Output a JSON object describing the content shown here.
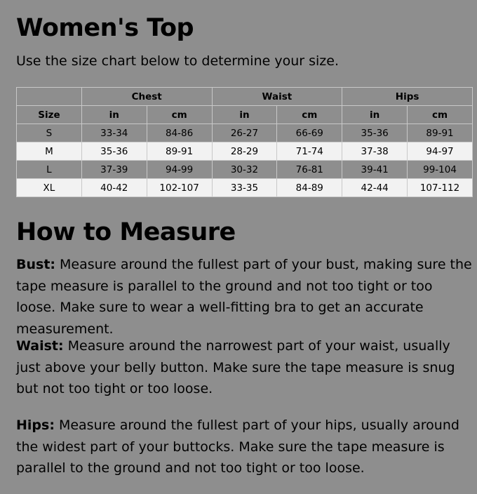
{
  "title": "Women's Top",
  "intro": "Use the size chart below to determine your size.",
  "table": {
    "groups": [
      "Chest",
      "Waist",
      "Hips"
    ],
    "subheaders": [
      "Size",
      "in",
      "cm",
      "in",
      "cm",
      "in",
      "cm"
    ],
    "rows": [
      [
        "S",
        "33-34",
        "84-86",
        "26-27",
        "66-69",
        "35-36",
        "89-91"
      ],
      [
        "M",
        "35-36",
        "89-91",
        "28-29",
        "71-74",
        "37-38",
        "94-97"
      ],
      [
        "L",
        "37-39",
        "94-99",
        "30-32",
        "76-81",
        "39-41",
        "99-104"
      ],
      [
        "XL",
        "40-42",
        "102-107",
        "33-35",
        "84-89",
        "42-44",
        "107-112"
      ]
    ]
  },
  "measure": {
    "title": "How to Measure",
    "items": [
      {
        "label": "Bust:",
        "text": " Measure around the fullest part of your bust, making sure the tape measure is parallel to the ground and not too tight or too loose. Make sure to wear a well-fitting bra to get an accurate measurement."
      },
      {
        "label": "Waist:",
        "text": " Measure around the narrowest part of your waist, usually just above your belly button. Make sure the tape measure is snug but not too tight or too loose."
      },
      {
        "label": "Hips:",
        "text": " Measure around the fullest part of your hips, usually around the widest part of your buttocks. Make sure the tape measure is parallel to the ground and not too tight or too loose."
      }
    ]
  }
}
